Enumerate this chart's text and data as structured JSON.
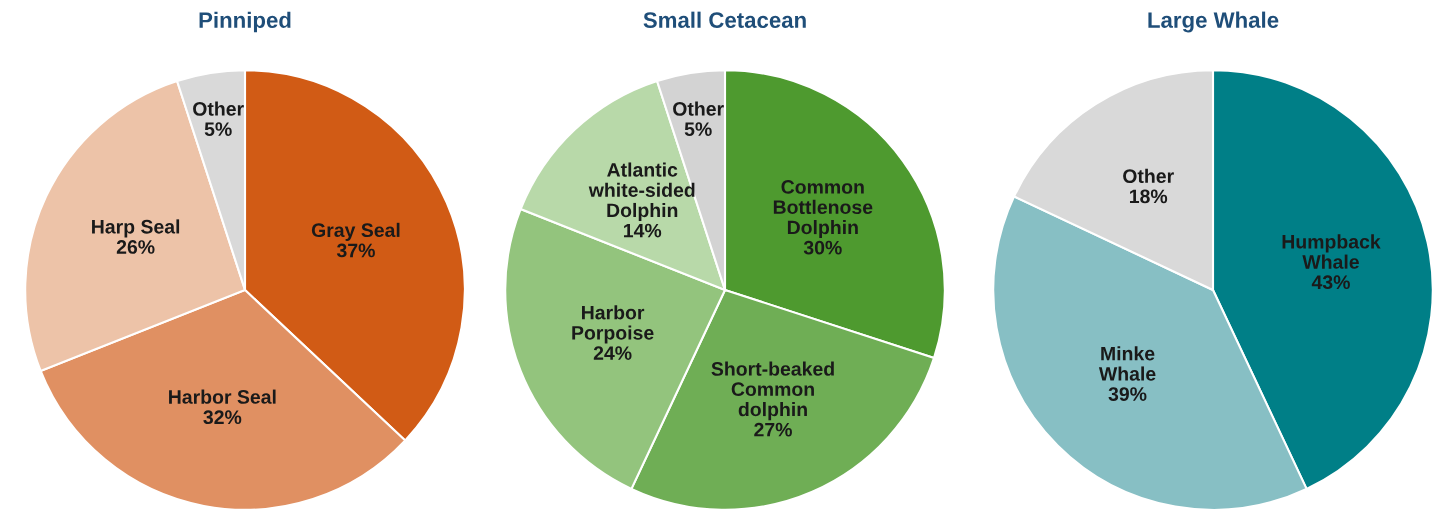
{
  "chart_data": [
    {
      "type": "pie",
      "title": "Pinniped",
      "categories": [
        "Gray Seal",
        "Harbor Seal",
        "Harp Seal",
        "Other"
      ],
      "values": [
        37,
        32,
        26,
        5
      ],
      "value_labels": [
        "37%",
        "32%",
        "26%",
        "5%"
      ],
      "colors": [
        "#d15b15",
        "#e09062",
        "#edc3a8",
        "#d9d9d9"
      ]
    },
    {
      "type": "pie",
      "title": "Small Cetacean",
      "categories": [
        "Common\nBottlenose\nDolphin",
        "Short-beaked\nCommon\ndolphin",
        "Harbor\nPorpoise",
        "Atlantic\nwhite-sided\nDolphin",
        "Other"
      ],
      "values": [
        30,
        27,
        24,
        14,
        5
      ],
      "value_labels": [
        "30%",
        "27%",
        "24%",
        "14%",
        "5%"
      ],
      "colors": [
        "#4e9a2f",
        "#6fae55",
        "#93c47d",
        "#b8d9a9",
        "#d3d3d3"
      ]
    },
    {
      "type": "pie",
      "title": "Large Whale",
      "categories": [
        "Humpback\nWhale",
        "Minke\nWhale",
        "Other"
      ],
      "values": [
        43,
        39,
        18
      ],
      "value_labels": [
        "43%",
        "39%",
        "18%"
      ],
      "colors": [
        "#007f87",
        "#87bfc4",
        "#d9d9d9"
      ]
    }
  ]
}
